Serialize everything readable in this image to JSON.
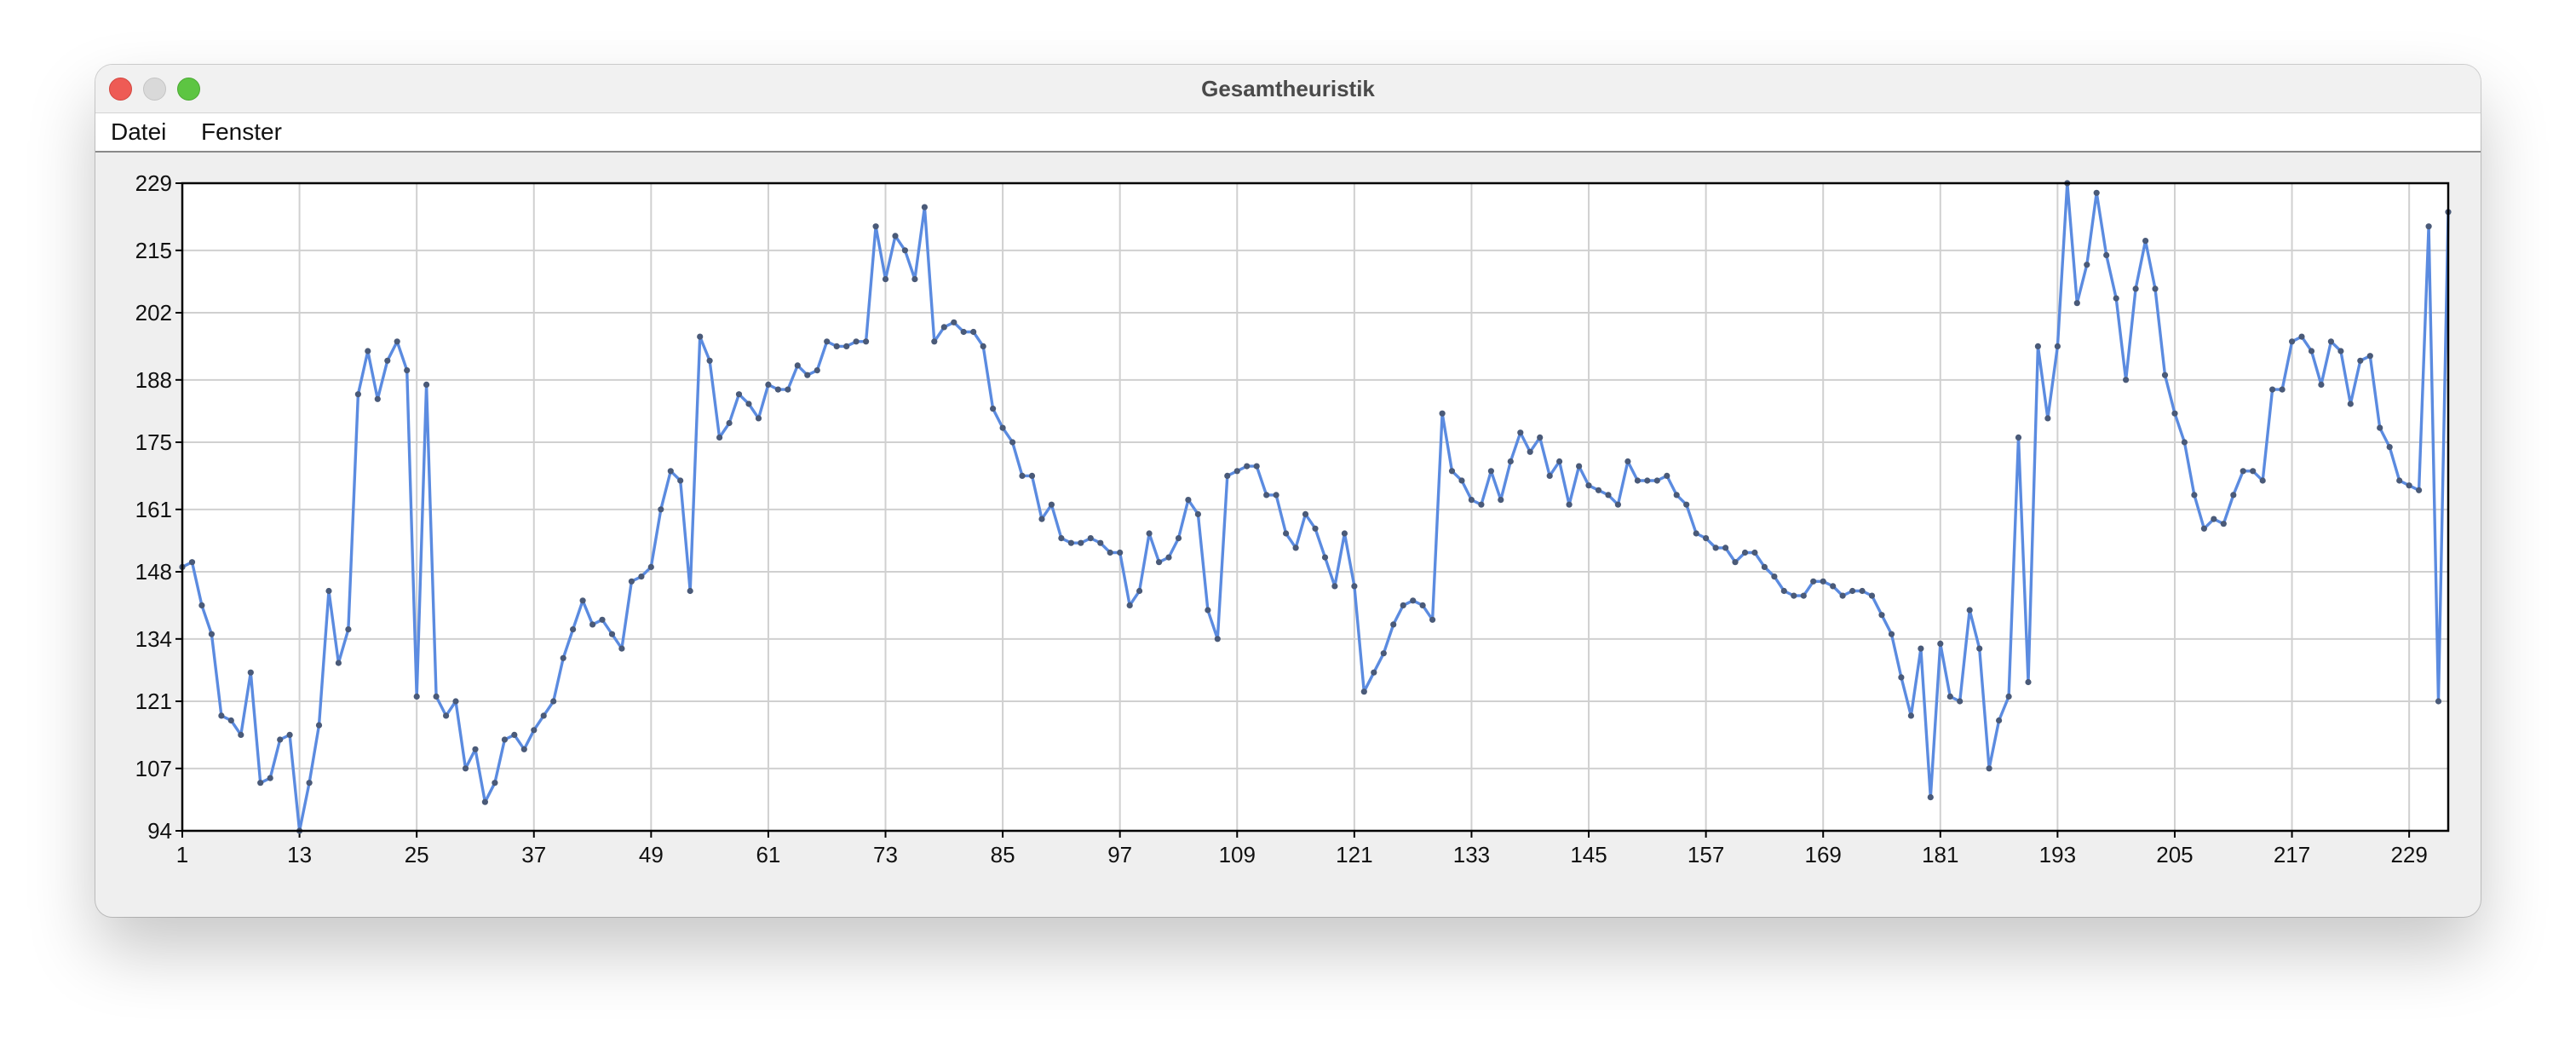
{
  "window": {
    "title": "Gesamtheuristik"
  },
  "menu": {
    "items": [
      "Datei",
      "Fenster"
    ]
  },
  "colors": {
    "line": "#5b8be0",
    "point": "#4a5a78",
    "grid": "#d0d0d0",
    "frame": "#000000"
  },
  "chart_data": {
    "type": "line",
    "title": "",
    "xlabel": "",
    "ylabel": "",
    "grid": true,
    "xlim": [
      1,
      233
    ],
    "ylim": [
      94,
      229
    ],
    "xticks": [
      1,
      13,
      25,
      37,
      49,
      61,
      73,
      85,
      97,
      109,
      121,
      133,
      145,
      157,
      169,
      181,
      193,
      205,
      217,
      229
    ],
    "yticks": [
      94,
      107,
      121,
      134,
      148,
      161,
      175,
      188,
      202,
      215,
      229
    ],
    "x_start": 1,
    "series": [
      {
        "values": [
          149,
          150,
          141,
          135,
          118,
          117,
          114,
          127,
          104,
          105,
          113,
          114,
          94,
          104,
          116,
          144,
          129,
          136,
          185,
          194,
          184,
          192,
          196,
          190,
          122,
          187,
          122,
          118,
          121,
          107,
          111,
          100,
          104,
          113,
          114,
          111,
          115,
          118,
          121,
          130,
          136,
          142,
          137,
          138,
          135,
          132,
          146,
          147,
          149,
          161,
          169,
          167,
          144,
          197,
          192,
          176,
          179,
          185,
          183,
          180,
          187,
          186,
          186,
          191,
          189,
          190,
          196,
          195,
          195,
          196,
          196,
          220,
          209,
          218,
          215,
          209,
          224,
          196,
          199,
          200,
          198,
          198,
          195,
          182,
          178,
          175,
          168,
          168,
          159,
          162,
          155,
          154,
          154,
          155,
          154,
          152,
          152,
          141,
          144,
          156,
          150,
          151,
          155,
          163,
          160,
          140,
          134,
          168,
          169,
          170,
          170,
          164,
          164,
          156,
          153,
          160,
          157,
          151,
          145,
          156,
          145,
          123,
          127,
          131,
          137,
          141,
          142,
          141,
          138,
          181,
          169,
          167,
          163,
          162,
          169,
          163,
          171,
          177,
          173,
          176,
          168,
          171,
          162,
          170,
          166,
          165,
          164,
          162,
          171,
          167,
          167,
          167,
          168,
          164,
          162,
          156,
          155,
          153,
          153,
          150,
          152,
          152,
          149,
          147,
          144,
          143,
          143,
          146,
          146,
          145,
          143,
          144,
          144,
          143,
          139,
          135,
          126,
          118,
          132,
          101,
          133,
          122,
          121,
          140,
          132,
          107,
          117,
          122,
          176,
          125,
          195,
          180,
          195,
          229,
          204,
          212,
          227,
          214,
          205,
          188,
          207,
          217,
          207,
          189,
          181,
          175,
          164,
          157,
          159,
          158,
          164,
          169,
          169,
          167,
          186,
          186,
          196,
          197,
          194,
          187,
          196,
          194,
          183,
          192,
          193,
          178,
          174,
          167,
          166,
          165,
          220,
          121,
          223
        ]
      }
    ]
  }
}
